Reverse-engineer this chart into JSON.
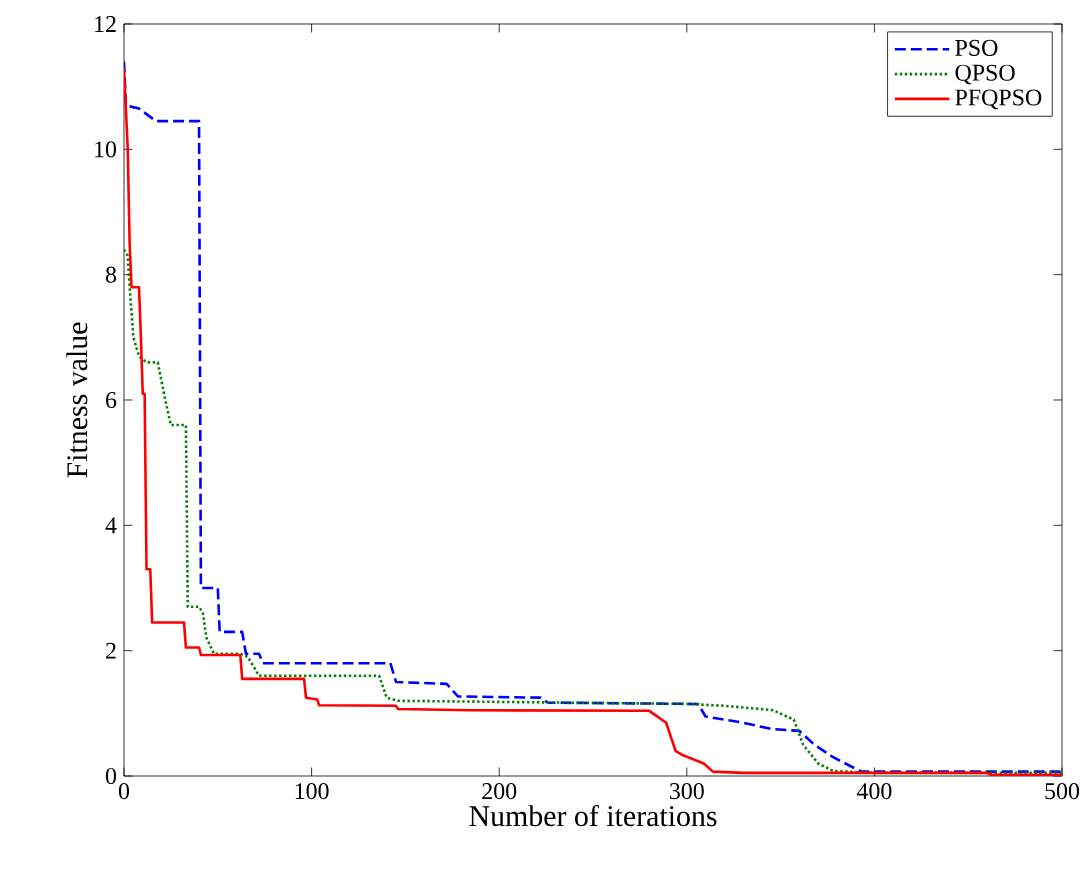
{
  "chart_data": {
    "type": "line",
    "xlabel": "Number of iterations",
    "ylabel": "Fitness value",
    "xlim": [
      0,
      500
    ],
    "ylim": [
      0,
      12
    ],
    "xticks": [
      0,
      100,
      200,
      300,
      400,
      500
    ],
    "yticks": [
      0,
      2,
      4,
      6,
      8,
      10,
      12
    ],
    "legend": "top right",
    "grid": false,
    "marker": "none",
    "series": [
      {
        "name": "PSO",
        "color": "#0000ff",
        "line_style": "dashed",
        "x": [
          0,
          1,
          8,
          17,
          40,
          41,
          50,
          51,
          63,
          65,
          72,
          74,
          142,
          145,
          172,
          178,
          222,
          226,
          306,
          310,
          330,
          345,
          360,
          368,
          378,
          393,
          500
        ],
        "values": [
          11.4,
          10.7,
          10.65,
          10.45,
          10.45,
          3.0,
          3.0,
          2.3,
          2.3,
          1.95,
          1.95,
          1.8,
          1.8,
          1.5,
          1.47,
          1.27,
          1.25,
          1.17,
          1.15,
          0.95,
          0.85,
          0.75,
          0.72,
          0.5,
          0.3,
          0.07,
          0.07
        ]
      },
      {
        "name": "QPSO",
        "color": "#008000",
        "line_style": "dotted",
        "x": [
          0,
          2,
          3,
          5,
          8,
          12,
          18,
          22,
          25,
          33,
          34,
          40,
          42,
          44,
          48,
          62,
          66,
          72,
          136,
          140,
          146,
          300,
          320,
          346,
          357,
          362,
          370,
          378,
          400,
          500
        ],
        "values": [
          8.4,
          8.3,
          7.8,
          7.0,
          6.7,
          6.6,
          6.6,
          6.0,
          5.6,
          5.6,
          2.7,
          2.7,
          2.6,
          2.2,
          1.95,
          1.95,
          1.9,
          1.6,
          1.6,
          1.25,
          1.2,
          1.15,
          1.12,
          1.05,
          0.9,
          0.5,
          0.2,
          0.08,
          0.05,
          0.05
        ]
      },
      {
        "name": "PFQPSO",
        "color": "#ff0000",
        "line_style": "solid",
        "x": [
          0,
          2,
          3,
          4,
          8,
          9,
          10,
          11,
          12,
          14,
          15,
          32,
          33,
          40,
          41,
          62,
          63,
          96,
          97,
          103,
          104,
          145,
          146,
          185,
          280,
          289,
          294,
          298,
          309,
          314,
          330,
          460,
          462,
          500
        ],
        "values": [
          11.3,
          10,
          8.5,
          7.8,
          7.8,
          7.0,
          6.1,
          6.1,
          3.3,
          3.3,
          2.45,
          2.45,
          2.05,
          2.05,
          1.93,
          1.93,
          1.55,
          1.55,
          1.25,
          1.22,
          1.13,
          1.12,
          1.07,
          1.05,
          1.04,
          0.85,
          0.4,
          0.33,
          0.2,
          0.07,
          0.05,
          0.05,
          0.02,
          0.02
        ]
      }
    ]
  }
}
